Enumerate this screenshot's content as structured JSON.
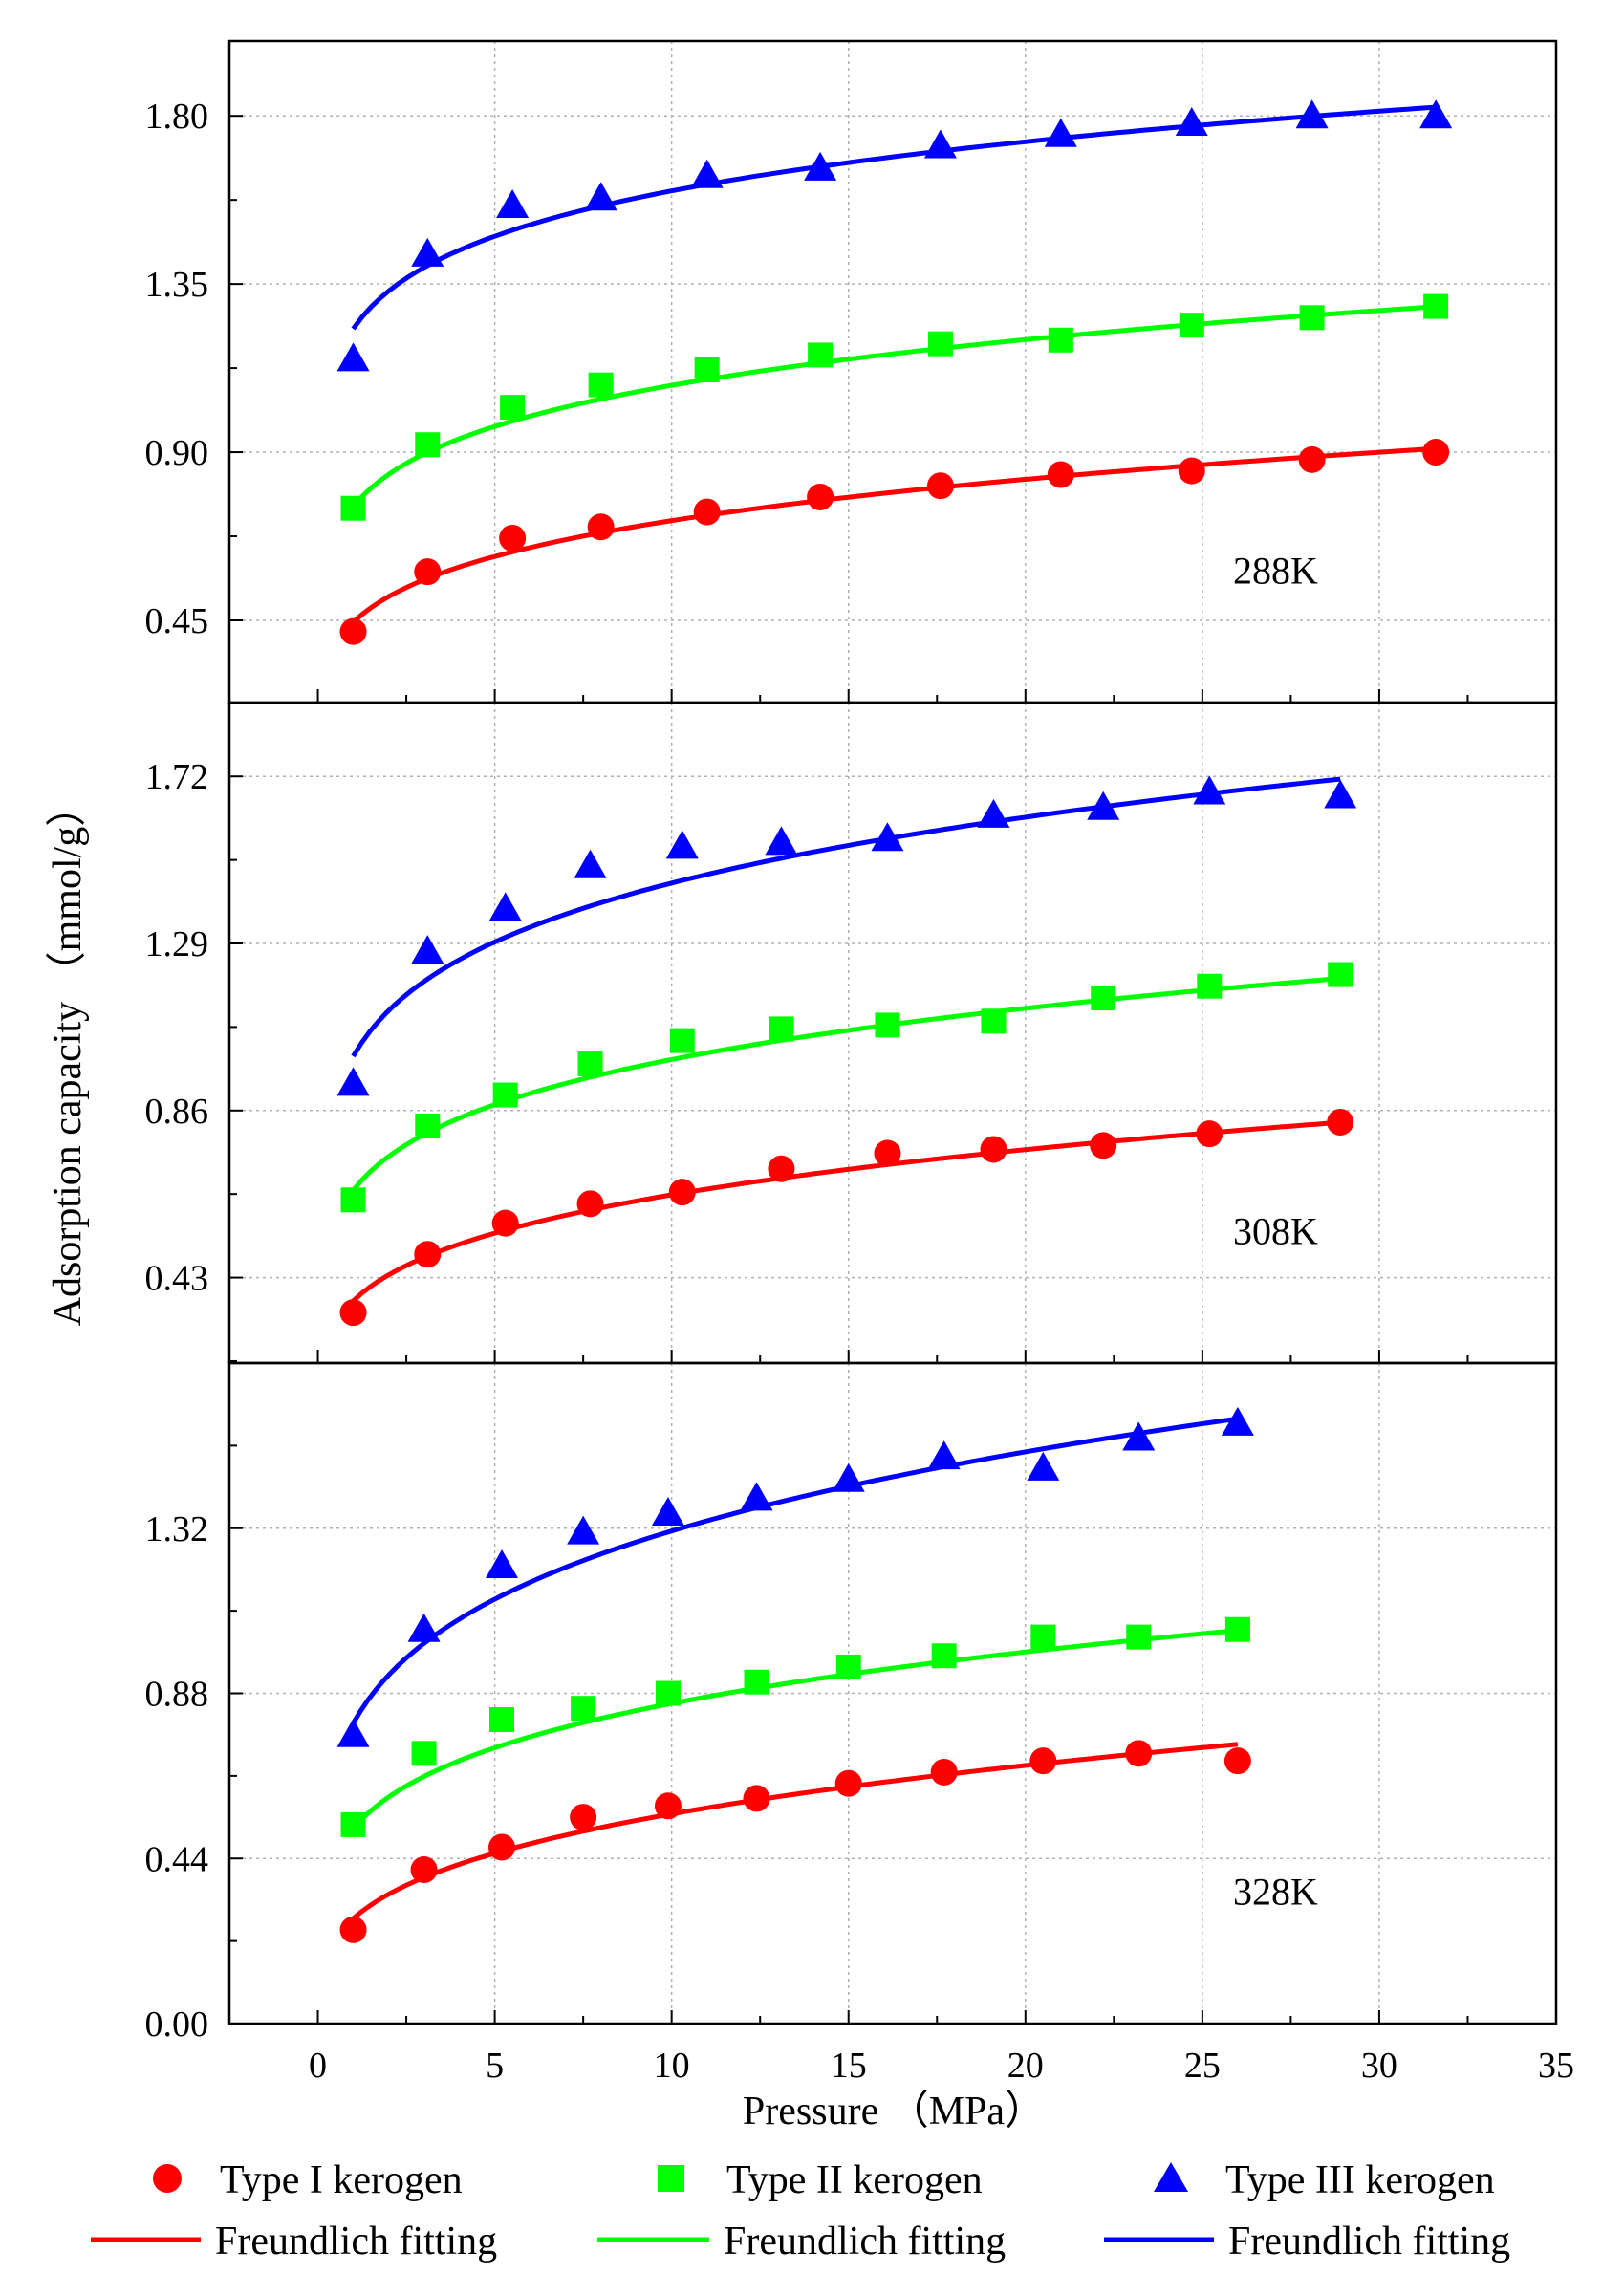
{
  "chart_data": {
    "type": "scatter",
    "xlabel": "Pressure （MPa）",
    "ylabel": "Adsorption capacity （mmol/g）",
    "xlim": [
      -2.5,
      35
    ],
    "xticks": [
      "0",
      "5",
      "10",
      "15",
      "20",
      "25",
      "30",
      "35"
    ],
    "grid": true,
    "colors": {
      "typeI": "#ff0000",
      "typeII": "#00ff00",
      "typeIII": "#0000ff"
    },
    "legend": {
      "position": "bottom",
      "markers": [
        "Type I kerogen",
        "Type II kerogen",
        "Type III kerogen"
      ],
      "fits": [
        "Freundlich fitting",
        "Freundlich fitting",
        "Freundlich fitting"
      ]
    },
    "panels": [
      {
        "label": "288K",
        "ylim": [
          0.23,
          2.0
        ],
        "yticks": [
          "0.45",
          "0.90",
          "1.35",
          "1.80"
        ],
        "series": [
          {
            "name": "Type I kerogen",
            "marker": "circle",
            "x": [
              1.0,
              3.1,
              5.5,
              8.0,
              11.0,
              14.2,
              17.6,
              21.0,
              24.7,
              28.1,
              31.6
            ],
            "y": [
              0.42,
              0.58,
              0.67,
              0.7,
              0.74,
              0.78,
              0.81,
              0.84,
              0.85,
              0.88,
              0.9
            ]
          },
          {
            "name": "Type II kerogen",
            "marker": "square",
            "x": [
              1.0,
              3.1,
              5.5,
              8.0,
              11.0,
              14.2,
              17.6,
              21.0,
              24.7,
              28.1,
              31.6
            ],
            "y": [
              0.75,
              0.92,
              1.02,
              1.08,
              1.12,
              1.16,
              1.19,
              1.2,
              1.24,
              1.26,
              1.29
            ]
          },
          {
            "name": "Type III kerogen",
            "marker": "triangle",
            "x": [
              1.0,
              3.1,
              5.5,
              8.0,
              11.0,
              14.2,
              17.6,
              21.0,
              24.7,
              28.1,
              31.6
            ],
            "y": [
              1.15,
              1.43,
              1.56,
              1.58,
              1.64,
              1.66,
              1.72,
              1.75,
              1.78,
              1.8,
              1.8
            ]
          }
        ],
        "fits": [
          {
            "name": "Freundlich fitting",
            "k": 0.445,
            "n": 0.207,
            "x_range": [
              1.0,
              31.6
            ]
          },
          {
            "name": "Freundlich fitting",
            "k": 0.755,
            "n": 0.155,
            "x_range": [
              1.0,
              31.6
            ]
          },
          {
            "name": "Freundlich fitting",
            "k": 1.23,
            "n": 0.114,
            "x_range": [
              1.0,
              31.6
            ]
          }
        ]
      },
      {
        "label": "308K",
        "ylim": [
          0.21,
          1.91
        ],
        "yticks": [
          "0.43",
          "0.86",
          "1.29",
          "1.72"
        ],
        "series": [
          {
            "name": "Type I kerogen",
            "marker": "circle",
            "x": [
              1.0,
              3.1,
              5.3,
              7.7,
              10.3,
              13.1,
              16.1,
              19.1,
              22.2,
              25.2,
              28.9
            ],
            "y": [
              0.34,
              0.49,
              0.57,
              0.62,
              0.65,
              0.71,
              0.75,
              0.76,
              0.77,
              0.8,
              0.83
            ]
          },
          {
            "name": "Type II kerogen",
            "marker": "square",
            "x": [
              1.0,
              3.1,
              5.3,
              7.7,
              10.3,
              13.1,
              16.1,
              19.1,
              22.2,
              25.2,
              28.9
            ],
            "y": [
              0.63,
              0.82,
              0.9,
              0.98,
              1.04,
              1.07,
              1.08,
              1.09,
              1.15,
              1.18,
              1.21
            ]
          },
          {
            "name": "Type III kerogen",
            "marker": "triangle",
            "x": [
              1.0,
              3.1,
              5.3,
              7.7,
              10.3,
              13.1,
              16.1,
              19.1,
              22.2,
              25.2,
              28.9
            ],
            "y": [
              0.93,
              1.27,
              1.38,
              1.49,
              1.54,
              1.55,
              1.56,
              1.62,
              1.64,
              1.68,
              1.67
            ]
          }
        ],
        "fits": [
          {
            "name": "Freundlich fitting",
            "k": 0.37,
            "n": 0.24,
            "x_range": [
              1.0,
              28.9
            ]
          },
          {
            "name": "Freundlich fitting",
            "k": 0.655,
            "n": 0.18,
            "x_range": [
              1.0,
              28.9
            ]
          },
          {
            "name": "Freundlich fitting",
            "k": 1.0,
            "n": 0.16,
            "x_range": [
              1.0,
              28.9
            ]
          }
        ]
      },
      {
        "label": "328K",
        "ylim": [
          0.0,
          1.76
        ],
        "yticks": [
          "0.00",
          "0.44",
          "0.88",
          "1.32"
        ],
        "series": [
          {
            "name": "Type I kerogen",
            "marker": "circle",
            "x": [
              1.0,
              3.0,
              5.2,
              7.5,
              9.9,
              12.4,
              15.0,
              17.7,
              20.5,
              23.2,
              26.0
            ],
            "y": [
              0.25,
              0.41,
              0.47,
              0.55,
              0.58,
              0.6,
              0.64,
              0.67,
              0.7,
              0.72,
              0.7
            ]
          },
          {
            "name": "Type II kerogen",
            "marker": "square",
            "x": [
              1.0,
              3.0,
              5.2,
              7.5,
              9.9,
              12.4,
              15.0,
              17.7,
              20.5,
              23.2,
              26.0
            ],
            "y": [
              0.53,
              0.72,
              0.81,
              0.84,
              0.88,
              0.91,
              0.95,
              0.98,
              1.03,
              1.03,
              1.05
            ]
          },
          {
            "name": "Type III kerogen",
            "marker": "triangle",
            "x": [
              1.0,
              3.0,
              5.2,
              7.5,
              9.9,
              12.4,
              15.0,
              17.7,
              20.5,
              23.2,
              26.0
            ],
            "y": [
              0.77,
              1.05,
              1.22,
              1.31,
              1.36,
              1.4,
              1.45,
              1.51,
              1.48,
              1.56,
              1.6
            ]
          }
        ],
        "fits": [
          {
            "name": "Freundlich fitting",
            "k": 0.28,
            "n": 0.3,
            "x_range": [
              1.0,
              26.0
            ]
          },
          {
            "name": "Freundlich fitting",
            "k": 0.52,
            "n": 0.215,
            "x_range": [
              1.0,
              26.0
            ]
          },
          {
            "name": "Freundlich fitting",
            "k": 0.8,
            "n": 0.215,
            "x_range": [
              1.0,
              26.0
            ]
          }
        ]
      }
    ]
  }
}
